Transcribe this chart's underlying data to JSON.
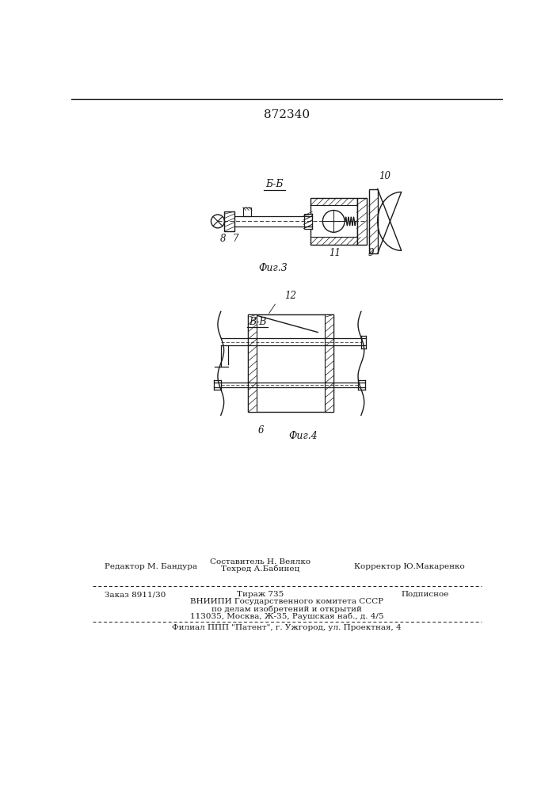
{
  "patent_number": "872340",
  "fig3_label": "Б-Б",
  "fig3_caption": "Фиг.3",
  "fig4_label": "В-В",
  "fig4_caption": "Фиг.4",
  "label_10": "10",
  "label_8": "8",
  "label_7": "7",
  "label_11": "11",
  "label_9": "9",
  "label_12": "12",
  "label_6": "6",
  "footer_line1_left": "Редактор М. Бандура",
  "footer_line1_center_top": "Составитель Н. Веялко",
  "footer_line1_center_bot": "Техред А.Бабинец",
  "footer_line1_right": "Корректор Ю.Макаренко",
  "footer_line2_left": "Заказ 8911/30",
  "footer_line2_center": "Тираж 735",
  "footer_line2_right": "Подписное",
  "footer_line3": "ВНИИПИ Государственного комитета СССР",
  "footer_line4": "по делам изобретений и открытий",
  "footer_line5": "113035, Москва, Ж-35, Раушская наб., д. 4/5",
  "footer_line6": "Филиал ППП \"Патент\", г. Ужгород, ул. Проектная, 4",
  "line_color": "#1a1a1a"
}
